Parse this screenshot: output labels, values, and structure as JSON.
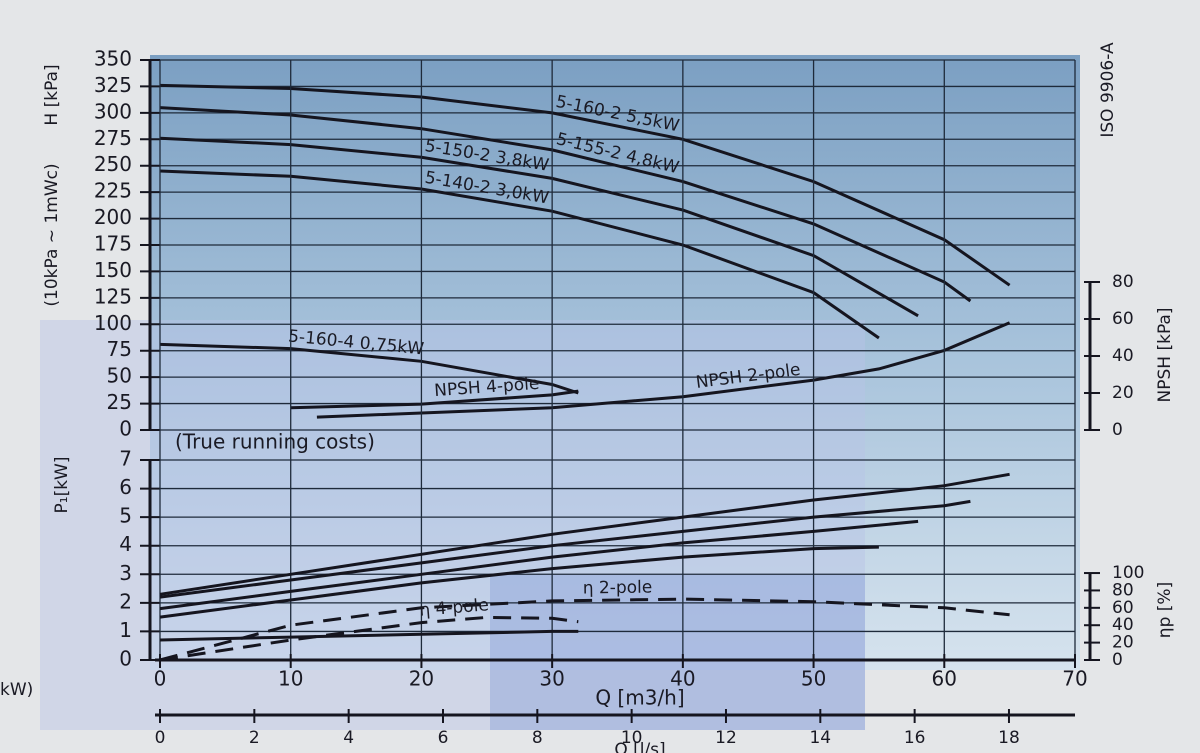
{
  "chart_data": [
    {
      "type": "line",
      "ylabel": "H [kPa]",
      "ylabel_note": "(10kPa ~ 1mWc)",
      "standard": "ISO 9906-A",
      "xlim": [
        0,
        70
      ],
      "ylim": [
        0,
        350
      ],
      "yticks": [
        0,
        25,
        50,
        75,
        100,
        125,
        150,
        175,
        200,
        225,
        250,
        275,
        300,
        325,
        350
      ],
      "y2label": "NPSH [kPa]",
      "y2lim": [
        0,
        200
      ],
      "y2ticks": [
        0,
        20,
        40,
        60,
        80
      ],
      "grid": true,
      "series": [
        {
          "name": "5-160-2  5,5kW",
          "color": "#15151f",
          "x": [
            0,
            10,
            20,
            30,
            40,
            50,
            60,
            65
          ],
          "values": [
            326,
            323,
            315,
            300,
            275,
            235,
            180,
            137
          ]
        },
        {
          "name": "5-155-2  4,8kW",
          "color": "#15151f",
          "x": [
            0,
            10,
            20,
            30,
            40,
            50,
            60,
            62
          ],
          "values": [
            305,
            298,
            285,
            265,
            235,
            195,
            140,
            122
          ]
        },
        {
          "name": "5-150-2  3,8kW",
          "color": "#15151f",
          "x": [
            0,
            10,
            20,
            30,
            40,
            50,
            58
          ],
          "values": [
            276,
            270,
            258,
            238,
            208,
            165,
            108
          ]
        },
        {
          "name": "5-140-2  3,0kW",
          "color": "#15151f",
          "x": [
            0,
            10,
            20,
            30,
            40,
            50,
            55
          ],
          "values": [
            245,
            240,
            228,
            207,
            175,
            130,
            87
          ]
        },
        {
          "name": "5-160-4  0,75kW",
          "color": "#15151f",
          "x": [
            0,
            10,
            20,
            30,
            32
          ],
          "values": [
            81,
            77,
            65,
            43,
            35
          ]
        },
        {
          "name": "NPSH 2-pole",
          "axis": "y2",
          "color": "#15151f",
          "x": [
            12,
            30,
            40,
            50,
            55,
            60,
            65
          ],
          "values": [
            7,
            12,
            18,
            27,
            33,
            43,
            58
          ]
        },
        {
          "name": "NPSH 4-pole",
          "axis": "y2",
          "color": "#15151f",
          "x": [
            10,
            20,
            30,
            32
          ],
          "values": [
            12,
            14,
            19,
            21
          ]
        }
      ]
    },
    {
      "type": "line",
      "ylabel": "P₁[kW]",
      "annotation": "(True running costs)",
      "xlabel": "Q [m3/h]",
      "xlim": [
        0,
        70
      ],
      "xticks": [
        0,
        10,
        20,
        30,
        40,
        50,
        60,
        70
      ],
      "ylim": [
        0,
        7
      ],
      "yticks": [
        0,
        1,
        2,
        3,
        4,
        5,
        6,
        7
      ],
      "y2label": "ηp [%]",
      "y2lim": [
        0,
        230
      ],
      "y2ticks": [
        0,
        20,
        40,
        60,
        80,
        100
      ],
      "grid": true,
      "series": [
        {
          "color": "#15151f",
          "x": [
            0,
            10,
            20,
            30,
            40,
            50,
            60,
            65
          ],
          "values": [
            2.3,
            3.0,
            3.7,
            4.4,
            5.0,
            5.6,
            6.1,
            6.5
          ]
        },
        {
          "color": "#15151f",
          "x": [
            0,
            10,
            20,
            30,
            40,
            50,
            60,
            62
          ],
          "values": [
            2.2,
            2.8,
            3.4,
            4.0,
            4.5,
            5.0,
            5.4,
            5.55
          ]
        },
        {
          "color": "#15151f",
          "x": [
            0,
            10,
            20,
            30,
            40,
            50,
            58
          ],
          "values": [
            1.8,
            2.4,
            3.0,
            3.6,
            4.1,
            4.5,
            4.85
          ]
        },
        {
          "color": "#15151f",
          "x": [
            0,
            10,
            20,
            30,
            40,
            50,
            55
          ],
          "values": [
            1.5,
            2.1,
            2.7,
            3.2,
            3.6,
            3.9,
            3.95
          ]
        },
        {
          "color": "#15151f",
          "x": [
            0,
            10,
            20,
            30,
            32
          ],
          "values": [
            0.7,
            0.8,
            0.9,
            1.0,
            1.0
          ]
        },
        {
          "name": "η 2-pole",
          "axis": "y2",
          "dashed": true,
          "color": "#15151f",
          "x": [
            0,
            10,
            20,
            30,
            40,
            50,
            60,
            65
          ],
          "values": [
            0,
            40,
            60,
            68,
            70,
            67,
            60,
            52
          ]
        },
        {
          "name": "η 4-pole",
          "axis": "y2",
          "dashed": true,
          "color": "#15151f",
          "x": [
            0,
            10,
            20,
            25,
            30,
            32
          ],
          "values": [
            0,
            23,
            43,
            49,
            48,
            44
          ]
        }
      ]
    },
    {
      "type": "axis",
      "xlabel": "Q [l/s]",
      "xlim": [
        0,
        19.4
      ],
      "xticks": [
        0,
        2,
        4,
        6,
        8,
        10,
        12,
        14,
        16,
        18
      ]
    }
  ],
  "fragment": "kW)"
}
